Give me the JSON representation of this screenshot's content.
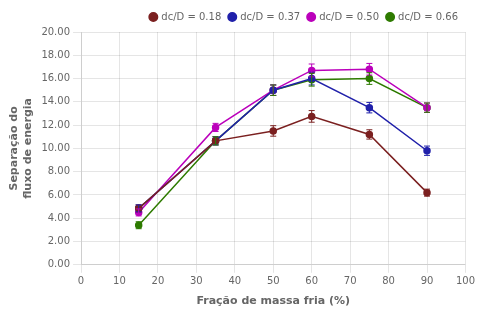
{
  "chart_data": {
    "type": "line",
    "xlabel": "Fração de massa fria (%)",
    "ylabel": [
      "Separação do",
      "fluxo de energia"
    ],
    "x": [
      15,
      35,
      50,
      60,
      75,
      90
    ],
    "series": [
      {
        "name": "dc/D = 0.18",
        "color": "#7B2020",
        "marker": "o",
        "values": [
          4.85,
          10.65,
          11.5,
          12.75,
          11.2,
          6.2
        ],
        "yerr": [
          0.3,
          0.35,
          0.45,
          0.5,
          0.4,
          0.3
        ]
      },
      {
        "name": "dc/D = 0.37",
        "color": "#2020AA",
        "marker": "o",
        "values": [
          4.85,
          10.65,
          15.0,
          16.0,
          13.5,
          9.8
        ],
        "yerr": [
          0.3,
          0.35,
          0.45,
          0.55,
          0.45,
          0.4
        ]
      },
      {
        "name": "dc/D = 0.50",
        "color": "#BB00BB",
        "marker": "o",
        "values": [
          4.5,
          11.8,
          15.0,
          16.7,
          16.8,
          13.5
        ],
        "yerr": [
          0.3,
          0.35,
          0.45,
          0.55,
          0.5,
          0.4
        ]
      },
      {
        "name": "dc/D = 0.66",
        "color": "#2E7B00",
        "marker": "o",
        "values": [
          3.4,
          10.65,
          15.0,
          15.9,
          16.0,
          13.5
        ],
        "yerr": [
          0.3,
          0.35,
          0.45,
          0.55,
          0.5,
          0.4
        ]
      }
    ],
    "xlim": [
      0,
      100
    ],
    "ylim": [
      0.0,
      20.0
    ],
    "xticks": [
      0,
      10,
      20,
      30,
      40,
      50,
      60,
      70,
      80,
      90,
      100
    ],
    "yticks": [
      {
        "value": 0,
        "label": "0.00"
      },
      {
        "value": 2,
        "label": "2.00"
      },
      {
        "value": 4,
        "label": "4.00"
      },
      {
        "value": 6,
        "label": "6.00"
      },
      {
        "value": 8,
        "label": "8.00"
      },
      {
        "value": 10,
        "label": "10.00"
      },
      {
        "value": 12,
        "label": "12.00"
      },
      {
        "value": 14,
        "label": "14.00"
      },
      {
        "value": 16,
        "label": "16.00"
      },
      {
        "value": 18,
        "label": "18.00"
      },
      {
        "value": 20,
        "label": "20.00"
      }
    ],
    "grid": true,
    "legend": "upper right"
  }
}
